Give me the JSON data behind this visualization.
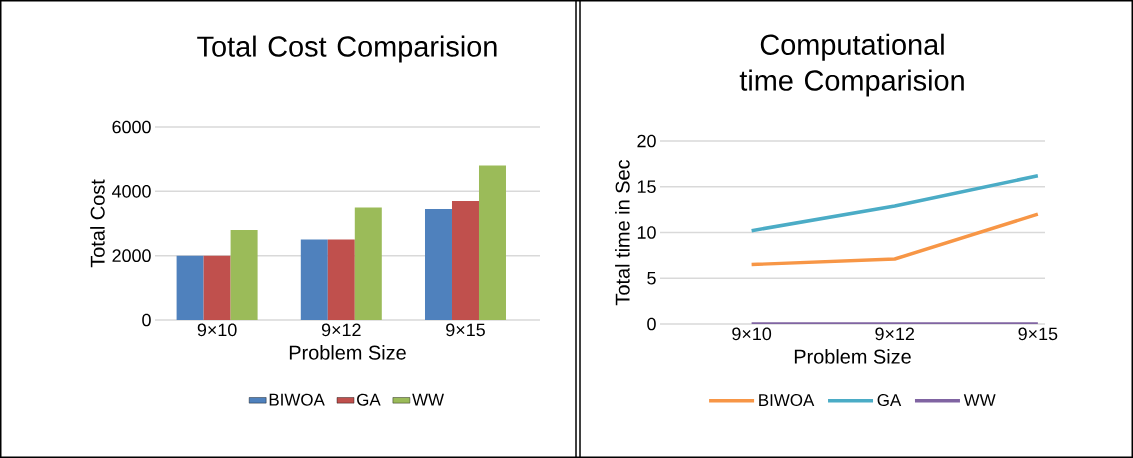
{
  "chart_data": [
    {
      "type": "bar",
      "title": "Total Cost Comparision",
      "xlabel": "Problem Size",
      "ylabel": "Total Cost",
      "categories": [
        "9×10",
        "9×12",
        "9×15"
      ],
      "series": [
        {
          "name": "BIWOA",
          "color": "#4f81bd",
          "values": [
            2000,
            2500,
            3450
          ]
        },
        {
          "name": "GA",
          "color": "#c0504d",
          "values": [
            2000,
            2500,
            3700
          ]
        },
        {
          "name": "WW",
          "color": "#9bbb59",
          "values": [
            2800,
            3500,
            4800
          ]
        }
      ],
      "ylim": [
        0,
        6000
      ],
      "yticks": [
        0,
        2000,
        4000,
        6000
      ],
      "grid": "y",
      "legend": "bottom"
    },
    {
      "type": "line",
      "title": "Computational time Comparision",
      "xlabel": "Problem Size",
      "ylabel": "Total time in Sec",
      "categories": [
        "9×10",
        "9×12",
        "9×15"
      ],
      "series": [
        {
          "name": "BIWOA",
          "color": "#f79646",
          "values": [
            6.5,
            7.1,
            12.0
          ]
        },
        {
          "name": "GA",
          "color": "#4bacc6",
          "values": [
            10.2,
            12.9,
            16.2
          ]
        },
        {
          "name": "WW",
          "color": "#8064a2",
          "values": [
            0,
            0,
            0
          ]
        }
      ],
      "ylim": [
        0,
        20
      ],
      "yticks": [
        0,
        5,
        10,
        15,
        20
      ],
      "grid": "y",
      "legend": "bottom",
      "marker": "none"
    }
  ]
}
